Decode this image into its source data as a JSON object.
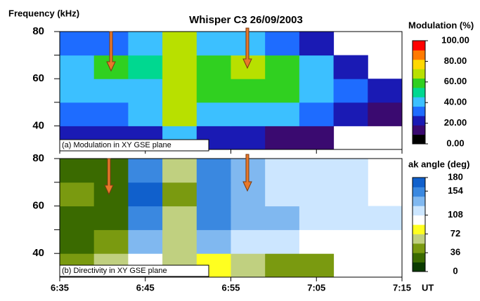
{
  "chart_data": [
    {
      "type": "heatmap",
      "title": "Whisper  C3  26/09/2003",
      "ylabel": "Frequency (kHz)",
      "panel_label": "(a) Modulation in XY GSE plane",
      "xlim": [
        395,
        435
      ],
      "xticks": [
        395,
        405,
        415,
        425,
        435
      ],
      "ylim": [
        30,
        80
      ],
      "yticks": [
        40,
        60,
        80
      ],
      "yminor": [
        50,
        70
      ],
      "x_edges": [
        395,
        399,
        403,
        407,
        411,
        415,
        419,
        423,
        427,
        431,
        435
      ],
      "y_edges": [
        30,
        40,
        50,
        60,
        70,
        80
      ],
      "z": [
        [
          25,
          20,
          25,
          40,
          20,
          20,
          15,
          10,
          null,
          null
        ],
        [
          35,
          35,
          40,
          65,
          40,
          45,
          40,
          30,
          20,
          15
        ],
        [
          40,
          45,
          45,
          70,
          55,
          60,
          55,
          45,
          35,
          25
        ],
        [
          45,
          55,
          50,
          70,
          60,
          65,
          55,
          40,
          25,
          null
        ],
        [
          30,
          35,
          40,
          65,
          45,
          40,
          35,
          25,
          null,
          null
        ]
      ],
      "colorbar": {
        "label": "Modulation (%)",
        "lim": [
          0,
          100
        ],
        "ticks": [
          {
            "value": 0,
            "label": "0.00"
          },
          {
            "value": 20,
            "label": "20.00"
          },
          {
            "value": 40,
            "label": "40.00"
          },
          {
            "value": 60,
            "label": "60.00"
          },
          {
            "value": 80,
            "label": "80.00"
          },
          {
            "value": 100,
            "label": "100.00"
          }
        ],
        "colors": [
          "#000000",
          "#3a0a70",
          "#1a1ab4",
          "#1e6cff",
          "#3cc0ff",
          "#00d890",
          "#30d020",
          "#b8e000",
          "#ffd800",
          "#ff7a00",
          "#ff0000"
        ]
      }
    },
    {
      "type": "heatmap",
      "panel_label": "(b) Directivity in XY GSE plane",
      "xlabel": "UT",
      "xlim": [
        395,
        435
      ],
      "xticks": [
        {
          "value": 395,
          "label": "6:35"
        },
        {
          "value": 405,
          "label": "6:45"
        },
        {
          "value": 415,
          "label": "6:55"
        },
        {
          "value": 425,
          "label": "7:05"
        },
        {
          "value": 435,
          "label": "7:15"
        }
      ],
      "ylim": [
        30,
        80
      ],
      "yticks": [
        40,
        60,
        80
      ],
      "yminor": [
        50,
        70
      ],
      "x_edges": [
        395,
        399,
        403,
        407,
        411,
        415,
        419,
        423,
        427,
        431,
        435
      ],
      "y_edges": [
        30,
        40,
        50,
        60,
        70,
        80
      ],
      "z": [
        [
          40,
          60,
          90,
          70,
          80,
          60,
          50,
          45,
          null,
          null
        ],
        [
          20,
          40,
          130,
          60,
          140,
          120,
          110,
          100,
          95,
          null
        ],
        [
          30,
          25,
          150,
          70,
          150,
          140,
          130,
          125,
          115,
          110
        ],
        [
          40,
          35,
          165,
          50,
          160,
          135,
          125,
          120,
          112,
          null
        ],
        [
          30,
          20,
          160,
          60,
          150,
          130,
          120,
          115,
          110,
          null
        ]
      ],
      "colorbar": {
        "label": "ak angle (deg)",
        "lim": [
          0,
          180
        ],
        "ticks": [
          0,
          36,
          72,
          108,
          154,
          180
        ],
        "colors": [
          "#0a3a00",
          "#3a6a00",
          "#7a9a10",
          "#c0d080",
          "#ffff20",
          "#ffffff",
          "#cce6ff",
          "#80b8f0",
          "#3a88e0",
          "#1060cc"
        ]
      }
    }
  ]
}
